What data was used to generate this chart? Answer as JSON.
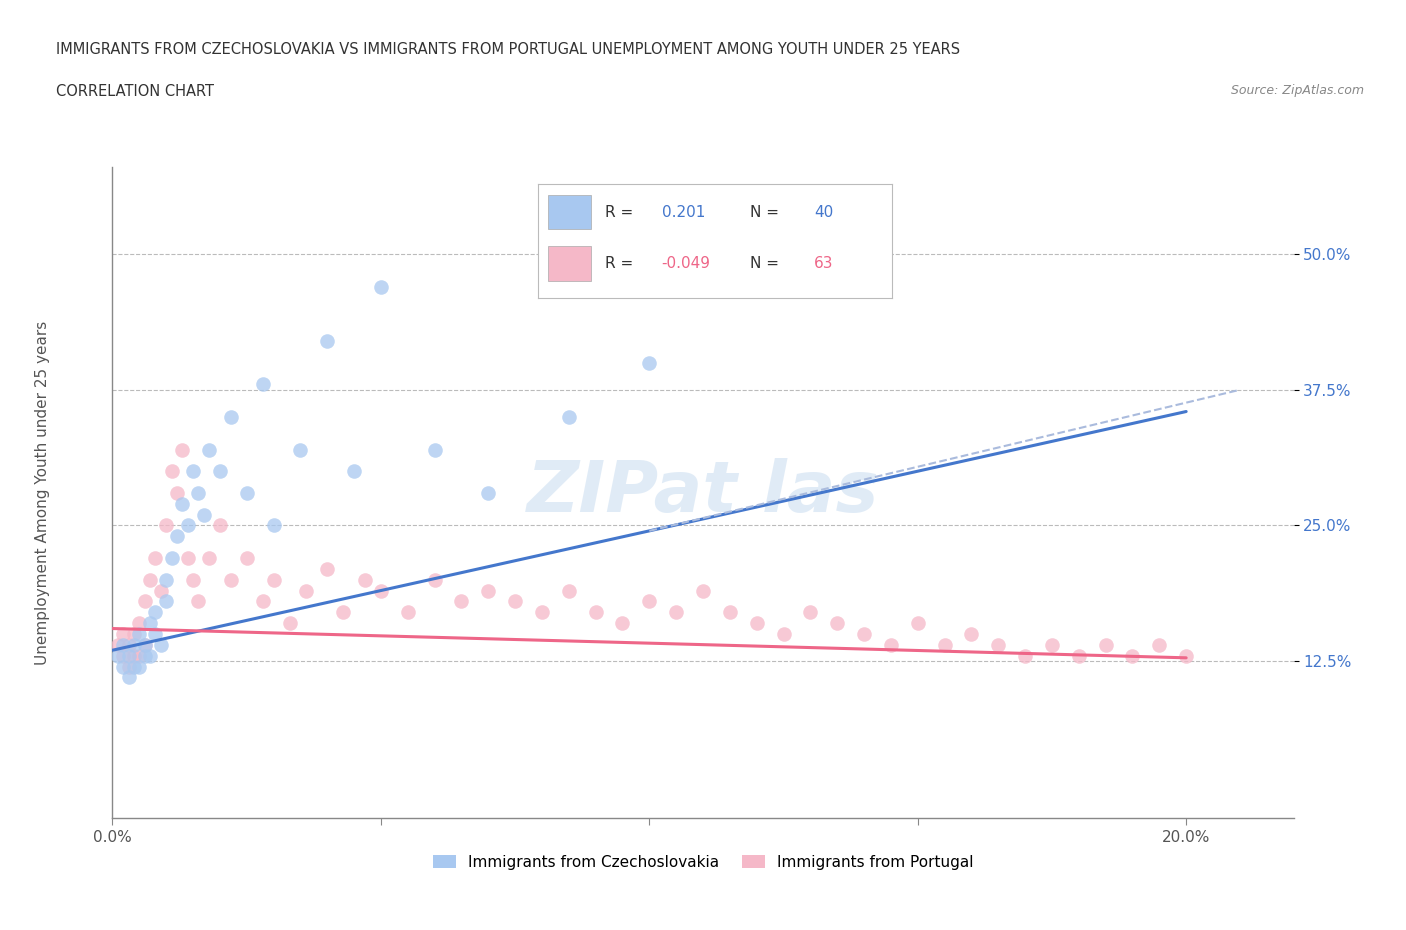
{
  "title_line1": "IMMIGRANTS FROM CZECHOSLOVAKIA VS IMMIGRANTS FROM PORTUGAL UNEMPLOYMENT AMONG YOUTH UNDER 25 YEARS",
  "title_line2": "CORRELATION CHART",
  "source": "Source: ZipAtlas.com",
  "ylabel": "Unemployment Among Youth under 25 years",
  "xlim": [
    0.0,
    0.22
  ],
  "ylim": [
    -0.02,
    0.58
  ],
  "xticks": [
    0.0,
    0.05,
    0.1,
    0.15,
    0.2
  ],
  "xticklabels": [
    "0.0%",
    "",
    "",
    "",
    "20.0%"
  ],
  "ytick_positions": [
    0.125,
    0.25,
    0.375,
    0.5
  ],
  "ytick_labels": [
    "12.5%",
    "25.0%",
    "37.5%",
    "50.0%"
  ],
  "color_blue": "#A8C8F0",
  "color_pink": "#F5B8C8",
  "color_blue_line": "#4477CC",
  "color_pink_line": "#EE6688",
  "color_blue_text": "#4477CC",
  "color_pink_text": "#EE6688",
  "blue_scatter_x": [
    0.001,
    0.002,
    0.002,
    0.003,
    0.003,
    0.004,
    0.004,
    0.005,
    0.005,
    0.006,
    0.006,
    0.007,
    0.007,
    0.008,
    0.008,
    0.009,
    0.01,
    0.01,
    0.011,
    0.012,
    0.013,
    0.014,
    0.015,
    0.016,
    0.017,
    0.018,
    0.02,
    0.022,
    0.025,
    0.028,
    0.03,
    0.035,
    0.04,
    0.045,
    0.05,
    0.06,
    0.07,
    0.085,
    0.1,
    0.12
  ],
  "blue_scatter_y": [
    0.13,
    0.12,
    0.14,
    0.11,
    0.13,
    0.12,
    0.14,
    0.12,
    0.15,
    0.13,
    0.14,
    0.16,
    0.13,
    0.15,
    0.17,
    0.14,
    0.18,
    0.2,
    0.22,
    0.24,
    0.27,
    0.25,
    0.3,
    0.28,
    0.26,
    0.32,
    0.3,
    0.35,
    0.28,
    0.38,
    0.25,
    0.32,
    0.42,
    0.3,
    0.47,
    0.32,
    0.28,
    0.35,
    0.4,
    0.48
  ],
  "pink_scatter_x": [
    0.001,
    0.002,
    0.002,
    0.003,
    0.003,
    0.004,
    0.004,
    0.005,
    0.005,
    0.006,
    0.006,
    0.007,
    0.008,
    0.009,
    0.01,
    0.011,
    0.012,
    0.013,
    0.014,
    0.015,
    0.016,
    0.018,
    0.02,
    0.022,
    0.025,
    0.028,
    0.03,
    0.033,
    0.036,
    0.04,
    0.043,
    0.047,
    0.05,
    0.055,
    0.06,
    0.065,
    0.07,
    0.075,
    0.08,
    0.085,
    0.09,
    0.095,
    0.1,
    0.105,
    0.11,
    0.115,
    0.12,
    0.125,
    0.13,
    0.135,
    0.14,
    0.145,
    0.15,
    0.155,
    0.16,
    0.165,
    0.17,
    0.175,
    0.18,
    0.185,
    0.19,
    0.195,
    0.2
  ],
  "pink_scatter_y": [
    0.14,
    0.13,
    0.15,
    0.12,
    0.14,
    0.13,
    0.15,
    0.13,
    0.16,
    0.14,
    0.18,
    0.2,
    0.22,
    0.19,
    0.25,
    0.3,
    0.28,
    0.32,
    0.22,
    0.2,
    0.18,
    0.22,
    0.25,
    0.2,
    0.22,
    0.18,
    0.2,
    0.16,
    0.19,
    0.21,
    0.17,
    0.2,
    0.19,
    0.17,
    0.2,
    0.18,
    0.19,
    0.18,
    0.17,
    0.19,
    0.17,
    0.16,
    0.18,
    0.17,
    0.19,
    0.17,
    0.16,
    0.15,
    0.17,
    0.16,
    0.15,
    0.14,
    0.16,
    0.14,
    0.15,
    0.14,
    0.13,
    0.14,
    0.13,
    0.14,
    0.13,
    0.14,
    0.13
  ],
  "blue_trend_x": [
    0.0,
    0.2
  ],
  "blue_trend_y": [
    0.135,
    0.355
  ],
  "pink_trend_x": [
    0.0,
    0.2
  ],
  "pink_trend_y": [
    0.155,
    0.128
  ],
  "legend_x_blue": "Immigrants from Czechoslovakia",
  "legend_x_pink": "Immigrants from Portugal"
}
